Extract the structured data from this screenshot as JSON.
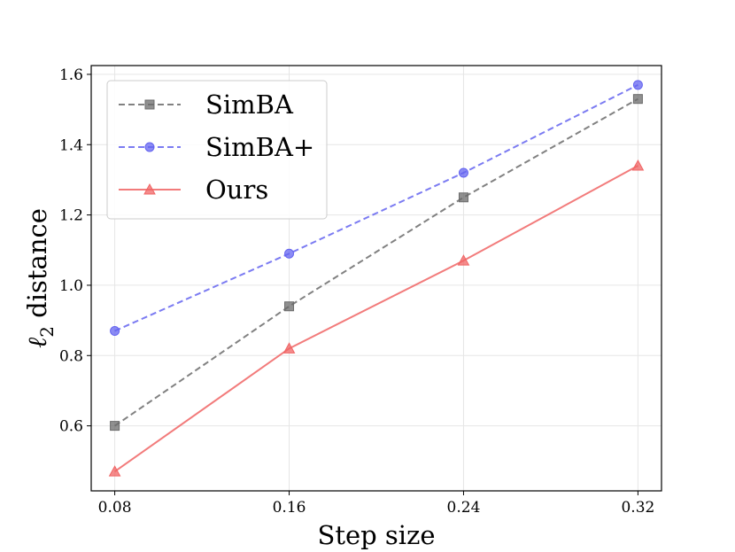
{
  "chart_data": {
    "type": "line",
    "title": "",
    "xlabel": "Step size",
    "ylabel_symbol": "ℓ",
    "ylabel_subscript": "2",
    "ylabel_rest": " distance",
    "x": [
      0.08,
      0.16,
      0.24,
      0.32
    ],
    "x_tick_labels": [
      "0.08",
      "0.16",
      "0.24",
      "0.32"
    ],
    "y_ticks": [
      0.6,
      0.8,
      1.0,
      1.2,
      1.4,
      1.6
    ],
    "y_tick_labels": [
      "0.6",
      "0.8",
      "1.0",
      "1.2",
      "1.4",
      "1.6"
    ],
    "xlim": [
      0.0692,
      0.3308
    ],
    "ylim": [
      0.415,
      1.625
    ],
    "grid": true,
    "legend_position": "top-left",
    "series": [
      {
        "name": "SimBA",
        "values": [
          0.6,
          0.94,
          1.25,
          1.53
        ],
        "color": "#6b6b6b",
        "marker": "square",
        "line_style": "dashed"
      },
      {
        "name": "SimBA+",
        "values": [
          0.87,
          1.09,
          1.32,
          1.57
        ],
        "color": "#6464f0",
        "marker": "circle",
        "line_style": "dashed"
      },
      {
        "name": "Ours",
        "values": [
          0.47,
          0.82,
          1.07,
          1.34
        ],
        "color": "#f06464",
        "marker": "triangle",
        "line_style": "solid"
      }
    ]
  }
}
